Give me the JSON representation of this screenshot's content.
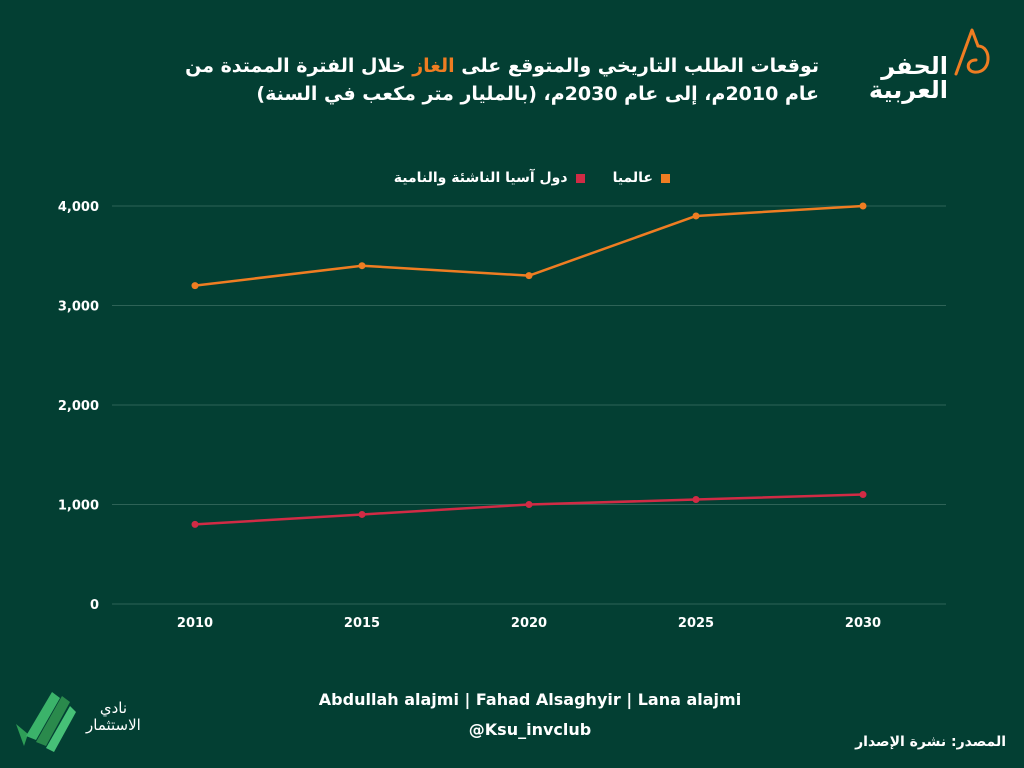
{
  "header": {
    "title_before": "توقعات الطلب التاريخي والمتوقع على",
    "title_accent": "الغاز",
    "title_after": "خلال الفترة الممتدة من عام 2010م، إلى عام 2030م، (بالمليار متر مكعب في السنة)",
    "logo_text_1": "الحفر",
    "logo_text_2": "العربية"
  },
  "chart_data": {
    "type": "line",
    "categories": [
      "2010",
      "2015",
      "2020",
      "2025",
      "2030"
    ],
    "series": [
      {
        "name": "عالميا",
        "values": [
          3200,
          3400,
          3300,
          3900,
          4000
        ],
        "color": "#ef7d22"
      },
      {
        "name": "دول آسيا الناشئة والنامية",
        "values": [
          800,
          900,
          1000,
          1050,
          1100
        ],
        "color": "#d12b45"
      }
    ],
    "ylim": [
      0,
      4000
    ],
    "yticks": [
      "0",
      "1,000",
      "2,000",
      "3,000",
      "4,000"
    ],
    "grid": true,
    "legend_position": "top-center"
  },
  "footer": {
    "authors": "Abdullah alajmi | Fahad Alsaghyir | Lana alajmi",
    "handle": "@Ksu_invclub",
    "source": "المصدر: نشرة الإصدار",
    "club_line1": "نادي",
    "club_line2": "الاستثمار"
  },
  "colors": {
    "background": "#033f33",
    "accent": "#ef7d22",
    "secondary": "#d12b45",
    "grid": "#2e6357"
  }
}
